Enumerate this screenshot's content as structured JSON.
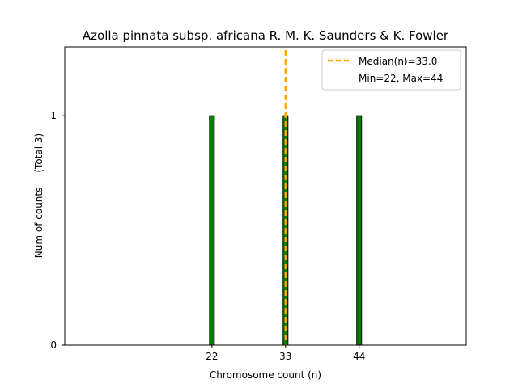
{
  "chart_data": {
    "type": "bar",
    "title": "Azolla pinnata subsp. africana R. M. K. Saunders & K. Fowler",
    "xlabel": "Chromosome count (n)",
    "ylabel": "Num of counts",
    "ylabel_total": "(Total 3)",
    "x": [
      22,
      33,
      44
    ],
    "values": [
      1,
      1,
      1
    ],
    "x_ticks": [
      "22",
      "33",
      "44"
    ],
    "y_ticks": [
      "0",
      "1"
    ],
    "xlim": [
      0,
      60
    ],
    "ylim": [
      0,
      1.3
    ],
    "bar_color": "#008000",
    "bar_edge_color": "#000000",
    "median": {
      "value": 33.0,
      "label": "Median(n)=33.0",
      "color": "#FFA500"
    },
    "range_label": "Min=22, Max=44",
    "legend_position": "top-right",
    "grid": false
  }
}
